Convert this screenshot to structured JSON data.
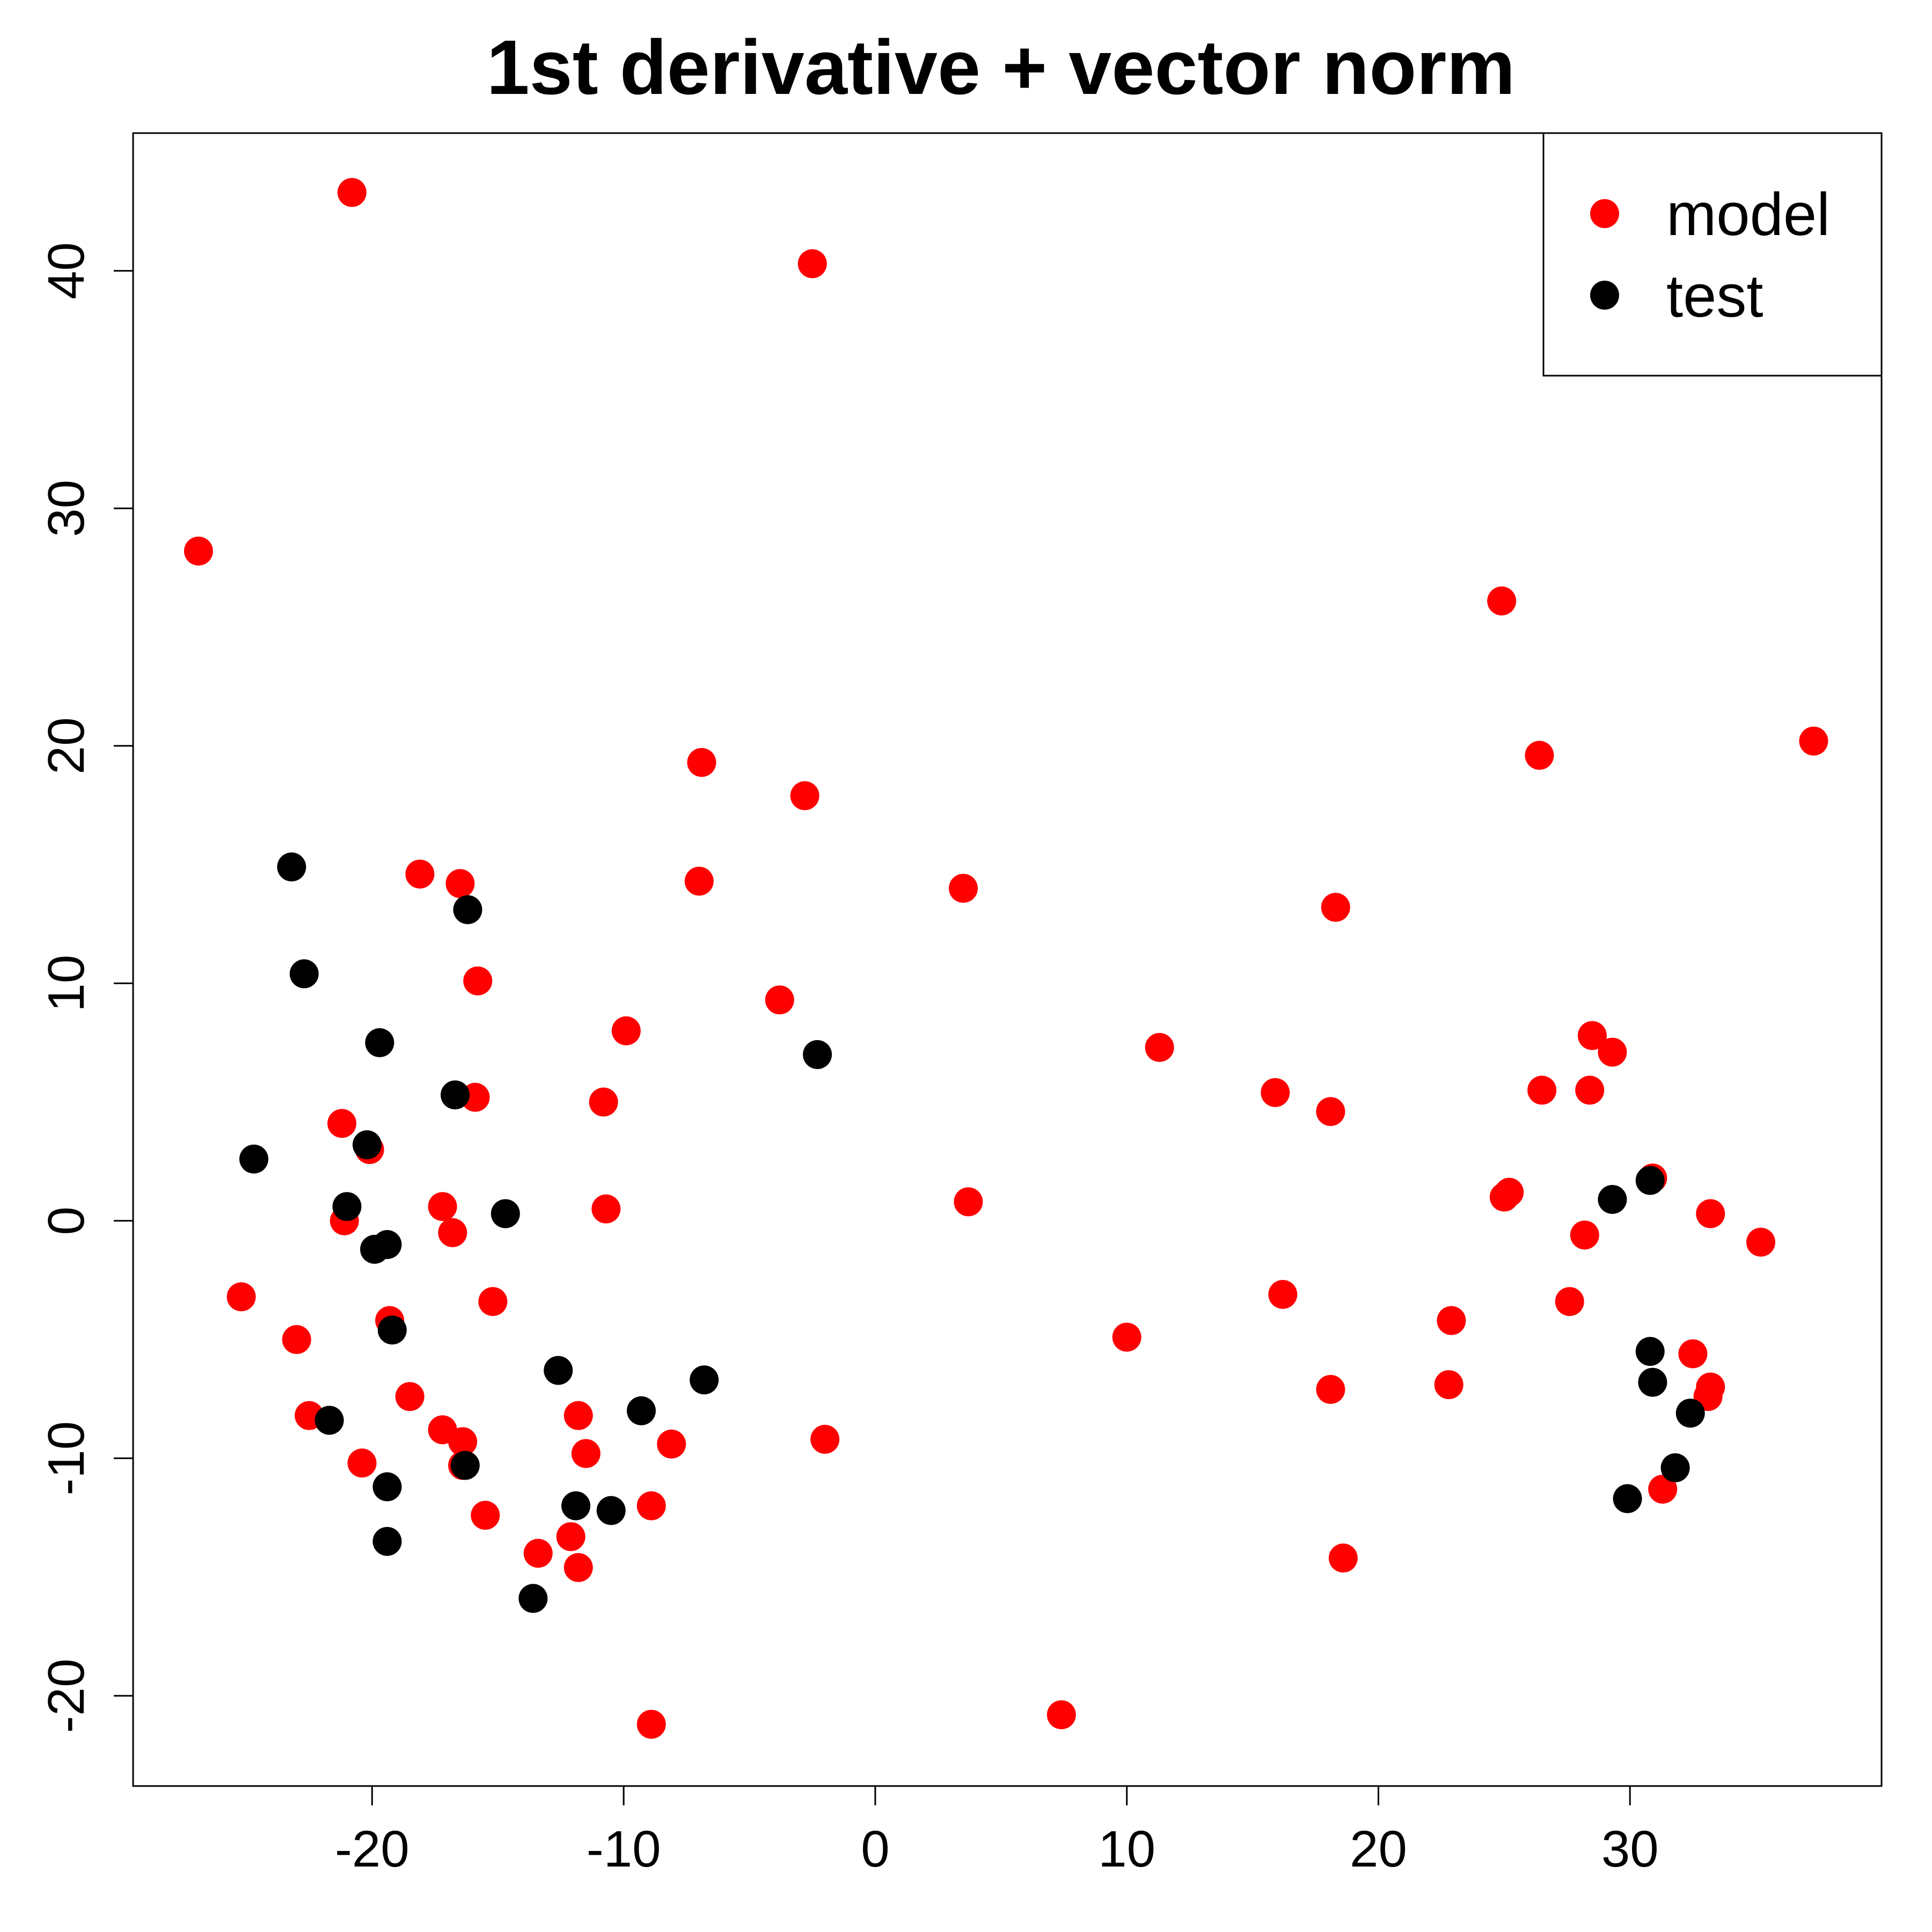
{
  "chart_data": {
    "type": "scatter",
    "title": "1st derivative + vector norm",
    "xlabel": "",
    "ylabel": "",
    "xlim": [
      -29.5,
      40
    ],
    "ylim": [
      -23.8,
      45.8
    ],
    "x_ticks": [
      -20,
      -10,
      0,
      10,
      20,
      30
    ],
    "y_ticks": [
      -20,
      -10,
      0,
      10,
      20,
      30,
      40
    ],
    "grid": false,
    "legend": {
      "position": "top-right"
    },
    "series": [
      {
        "name": "model",
        "color": "#ff0000",
        "points": [
          [
            -20.8,
            43.3
          ],
          [
            -2.5,
            40.3
          ],
          [
            -26.9,
            28.2
          ],
          [
            24.9,
            26.1
          ],
          [
            26.4,
            19.6
          ],
          [
            37.3,
            20.2
          ],
          [
            -6.9,
            19.3
          ],
          [
            -2.8,
            17.9
          ],
          [
            -18.1,
            14.6
          ],
          [
            -16.5,
            14.2
          ],
          [
            -7.0,
            14.3
          ],
          [
            3.5,
            14.0
          ],
          [
            18.3,
            13.2
          ],
          [
            -15.8,
            10.1
          ],
          [
            -3.8,
            9.3
          ],
          [
            -9.9,
            8.0
          ],
          [
            11.3,
            7.3
          ],
          [
            28.5,
            7.8
          ],
          [
            29.3,
            7.1
          ],
          [
            -15.9,
            5.2
          ],
          [
            -10.8,
            5.0
          ],
          [
            15.9,
            5.4
          ],
          [
            18.1,
            4.6
          ],
          [
            26.5,
            5.5
          ],
          [
            28.4,
            5.5
          ],
          [
            -21.2,
            4.1
          ],
          [
            -20.1,
            3.0
          ],
          [
            30.9,
            1.8
          ],
          [
            25.0,
            1.0
          ],
          [
            25.2,
            1.2
          ],
          [
            -17.2,
            0.6
          ],
          [
            -10.7,
            0.5
          ],
          [
            3.7,
            0.8
          ],
          [
            -21.1,
            0.0
          ],
          [
            -16.8,
            -0.5
          ],
          [
            28.2,
            -0.6
          ],
          [
            33.2,
            0.3
          ],
          [
            35.2,
            -0.9
          ],
          [
            -25.2,
            -3.2
          ],
          [
            -15.2,
            -3.4
          ],
          [
            16.2,
            -3.1
          ],
          [
            27.6,
            -3.4
          ],
          [
            -19.3,
            -4.2
          ],
          [
            -23.0,
            -5.0
          ],
          [
            10.0,
            -4.9
          ],
          [
            22.9,
            -4.2
          ],
          [
            32.5,
            -5.6
          ],
          [
            22.8,
            -6.9
          ],
          [
            33.2,
            -7.0
          ],
          [
            33.1,
            -7.4
          ],
          [
            -18.5,
            -7.4
          ],
          [
            18.1,
            -7.1
          ],
          [
            -22.5,
            -8.2
          ],
          [
            -11.8,
            -8.2
          ],
          [
            -17.2,
            -8.8
          ],
          [
            -16.4,
            -9.3
          ],
          [
            -11.5,
            -9.8
          ],
          [
            -8.1,
            -9.4
          ],
          [
            -2.0,
            -9.2
          ],
          [
            -20.4,
            -10.2
          ],
          [
            -16.4,
            -10.3
          ],
          [
            31.3,
            -11.3
          ],
          [
            -8.9,
            -12.0
          ],
          [
            -15.5,
            -12.4
          ],
          [
            -13.4,
            -14.0
          ],
          [
            -12.1,
            -13.3
          ],
          [
            -11.8,
            -14.6
          ],
          [
            18.6,
            -14.2
          ],
          [
            -8.9,
            -21.2
          ],
          [
            7.4,
            -20.8
          ]
        ]
      },
      {
        "name": "test",
        "color": "#000000",
        "points": [
          [
            -23.2,
            14.9
          ],
          [
            -16.2,
            13.1
          ],
          [
            -22.7,
            10.4
          ],
          [
            -19.7,
            7.5
          ],
          [
            -2.3,
            7.0
          ],
          [
            -16.7,
            5.3
          ],
          [
            -24.7,
            2.6
          ],
          [
            -20.2,
            3.2
          ],
          [
            -21.0,
            0.6
          ],
          [
            -14.7,
            0.3
          ],
          [
            -19.9,
            -1.2
          ],
          [
            -19.4,
            -1.0
          ],
          [
            29.3,
            0.9
          ],
          [
            30.8,
            1.7
          ],
          [
            -19.2,
            -4.6
          ],
          [
            30.8,
            -5.5
          ],
          [
            -12.6,
            -6.3
          ],
          [
            -6.8,
            -6.7
          ],
          [
            30.9,
            -6.8
          ],
          [
            -9.3,
            -8.0
          ],
          [
            -21.7,
            -8.4
          ],
          [
            32.4,
            -8.1
          ],
          [
            -16.3,
            -10.3
          ],
          [
            31.8,
            -10.4
          ],
          [
            -19.4,
            -11.2
          ],
          [
            -11.9,
            -12.0
          ],
          [
            -10.5,
            -12.2
          ],
          [
            29.9,
            -11.7
          ],
          [
            -19.4,
            -13.5
          ],
          [
            -13.6,
            -15.9
          ]
        ]
      }
    ]
  }
}
